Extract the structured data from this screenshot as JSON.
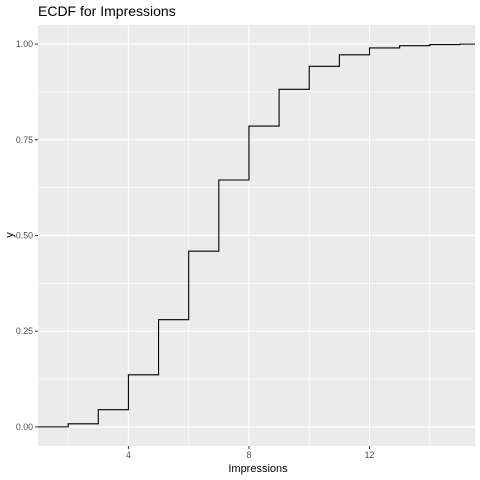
{
  "chart_data": {
    "type": "line",
    "step": true,
    "title": "ECDF for Impressions",
    "xlabel": "Impressions",
    "ylabel": "y",
    "xlim": [
      1.0,
      15.5
    ],
    "ylim": [
      -0.05,
      1.05
    ],
    "x_ticks": [
      4,
      8,
      12
    ],
    "x_tick_labels": [
      "4",
      "8",
      "12"
    ],
    "y_ticks": [
      0,
      0.25,
      0.5,
      0.75,
      1.0
    ],
    "y_tick_labels": [
      "0.00",
      "0.25",
      "0.50",
      "0.75",
      "1.00"
    ],
    "grid": true,
    "series": [
      {
        "x": [
          2,
          3,
          4,
          5,
          6,
          7,
          8,
          9,
          10,
          11,
          12,
          13,
          14,
          15
        ],
        "y": [
          0.008,
          0.045,
          0.136,
          0.28,
          0.459,
          0.645,
          0.786,
          0.882,
          0.942,
          0.972,
          0.99,
          0.996,
          0.999,
          1.0
        ]
      }
    ],
    "colors": {
      "panel": "#ebebeb",
      "grid": "#ffffff",
      "line": "#000000",
      "tick": "#333333"
    }
  }
}
